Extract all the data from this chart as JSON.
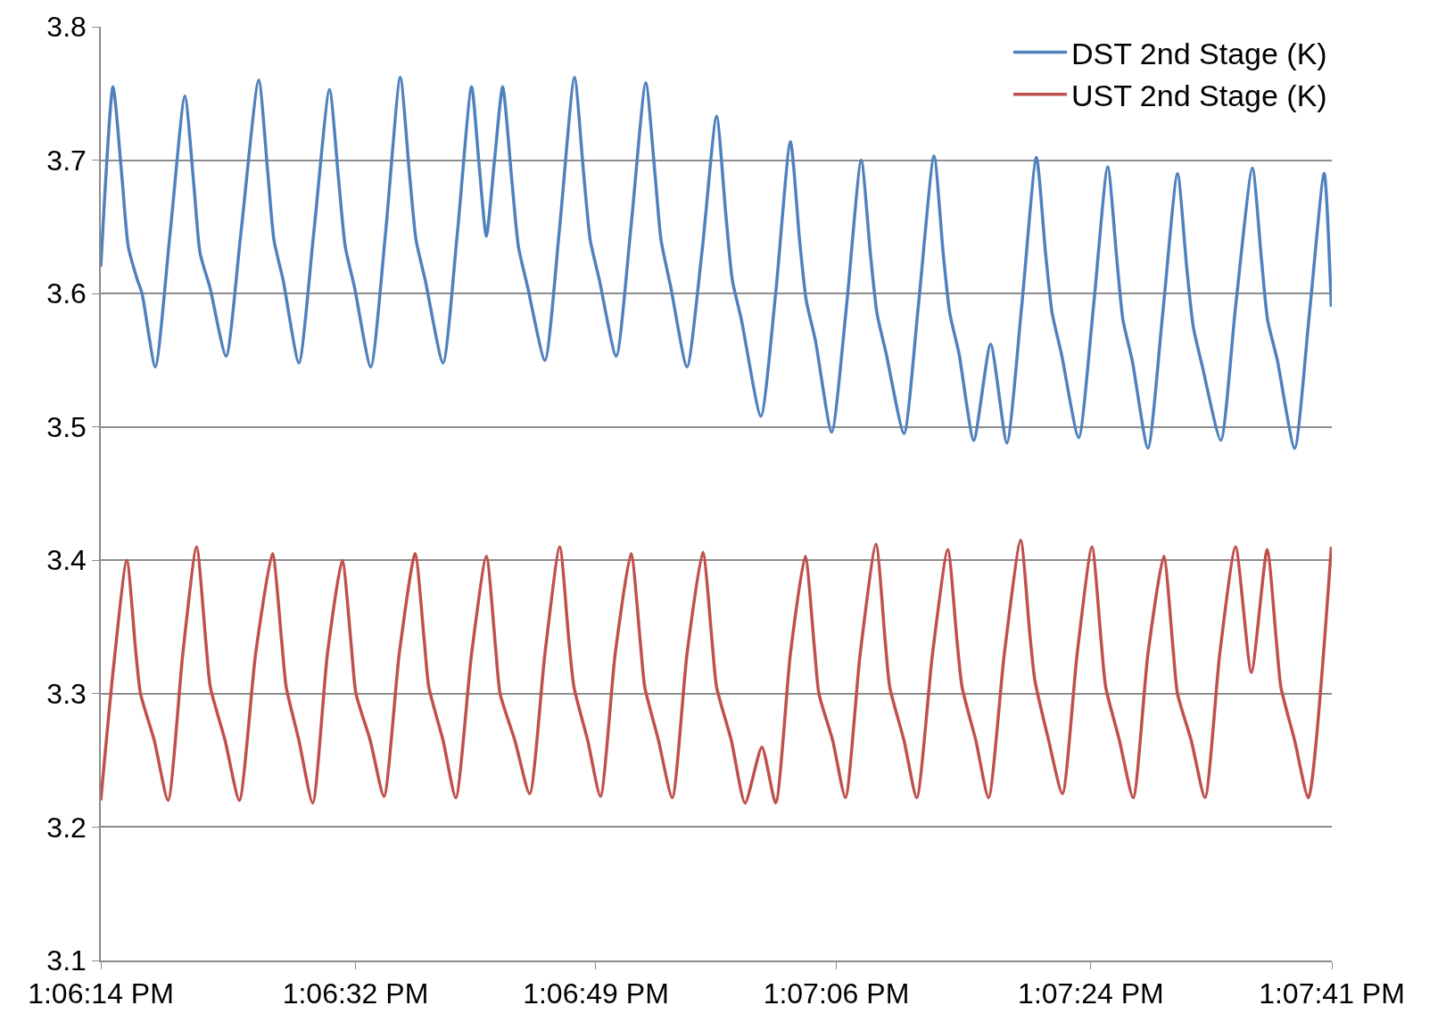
{
  "chart_data": {
    "type": "line",
    "xlim": [
      13.10389,
      13.12806
    ],
    "xticks": [
      {
        "value": 13.10389,
        "label": "1:06:14 PM"
      },
      {
        "value": 13.10889,
        "label": "1:06:32 PM"
      },
      {
        "value": 13.11361,
        "label": "1:06:49 PM"
      },
      {
        "value": 13.11833,
        "label": "1:07:06 PM"
      },
      {
        "value": 13.12333,
        "label": "1:07:24 PM"
      },
      {
        "value": 13.12806,
        "label": "1:07:41 PM"
      }
    ],
    "ylim": [
      3.1,
      3.8
    ],
    "yticks": [
      3.1,
      3.2,
      3.3,
      3.4,
      3.5,
      3.6,
      3.7,
      3.8
    ],
    "grid": "y",
    "legend": "top right",
    "marker": "none",
    "line_style": "solid",
    "series": [
      {
        "name": "DST 2nd Stage (K)",
        "color": "#4f81bd",
        "x": [
          13.10389,
          13.10413,
          13.10431,
          13.10443,
          13.10461,
          13.1047,
          13.10496,
          13.10525,
          13.10554,
          13.10572,
          13.10584,
          13.10603,
          13.10635,
          13.10664,
          13.10699,
          13.10717,
          13.10729,
          13.10747,
          13.10778,
          13.10807,
          13.10838,
          13.10856,
          13.10869,
          13.10887,
          13.10919,
          13.10948,
          13.10977,
          13.10995,
          13.11008,
          13.11026,
          13.11061,
          13.11089,
          13.11117,
          13.11131,
          13.11146,
          13.11162,
          13.11178,
          13.11196,
          13.11209,
          13.11227,
          13.11261,
          13.1129,
          13.11319,
          13.11337,
          13.1135,
          13.11368,
          13.11401,
          13.1143,
          13.11459,
          13.11477,
          13.11489,
          13.11508,
          13.1154,
          13.11569,
          13.11598,
          13.11616,
          13.11629,
          13.11647,
          13.11685,
          13.11714,
          13.11743,
          13.11761,
          13.11774,
          13.11792,
          13.11824,
          13.11853,
          13.11882,
          13.119,
          13.11913,
          13.11931,
          13.11966,
          13.11994,
          13.12025,
          13.12043,
          13.12056,
          13.12074,
          13.12103,
          13.12136,
          13.12168,
          13.12197,
          13.12226,
          13.12244,
          13.12257,
          13.12275,
          13.12309,
          13.12338,
          13.12366,
          13.12384,
          13.12396,
          13.12414,
          13.12445,
          13.12474,
          13.12503,
          13.12521,
          13.12534,
          13.12552,
          13.12588,
          13.12617,
          13.1265,
          13.12668,
          13.1268,
          13.12699,
          13.12733,
          13.12762,
          13.12791,
          13.12805
        ],
        "values": [
          3.62,
          3.755,
          3.685,
          3.635,
          3.61,
          3.6,
          3.545,
          3.645,
          3.748,
          3.68,
          3.63,
          3.605,
          3.553,
          3.645,
          3.76,
          3.69,
          3.64,
          3.61,
          3.548,
          3.645,
          3.753,
          3.685,
          3.635,
          3.605,
          3.545,
          3.645,
          3.762,
          3.69,
          3.64,
          3.61,
          3.548,
          3.645,
          3.755,
          3.7,
          3.643,
          3.7,
          3.755,
          3.685,
          3.635,
          3.605,
          3.55,
          3.65,
          3.762,
          3.69,
          3.64,
          3.61,
          3.553,
          3.65,
          3.758,
          3.69,
          3.64,
          3.605,
          3.545,
          3.63,
          3.733,
          3.66,
          3.61,
          3.58,
          3.508,
          3.6,
          3.714,
          3.64,
          3.595,
          3.565,
          3.496,
          3.59,
          3.7,
          3.63,
          3.585,
          3.555,
          3.495,
          3.59,
          3.703,
          3.63,
          3.585,
          3.555,
          3.49,
          3.562,
          3.488,
          3.59,
          3.702,
          3.63,
          3.585,
          3.555,
          3.492,
          3.59,
          3.695,
          3.625,
          3.58,
          3.55,
          3.484,
          3.585,
          3.69,
          3.62,
          3.575,
          3.545,
          3.49,
          3.59,
          3.694,
          3.625,
          3.58,
          3.55,
          3.484,
          3.585,
          3.69,
          3.59
        ]
      },
      {
        "name": "UST 2nd Stage (K)",
        "color": "#c0504d",
        "x": [
          13.10389,
          13.10414,
          13.1044,
          13.10458,
          13.10467,
          13.10494,
          13.10521,
          13.1055,
          13.10577,
          13.10595,
          13.10604,
          13.10633,
          13.10661,
          13.10693,
          13.10726,
          13.10744,
          13.10753,
          13.10778,
          13.10805,
          13.10834,
          13.10863,
          13.10881,
          13.1089,
          13.10918,
          13.10945,
          13.10975,
          13.11006,
          13.11024,
          13.11033,
          13.11061,
          13.11086,
          13.11117,
          13.11146,
          13.11164,
          13.11173,
          13.11202,
          13.11231,
          13.11261,
          13.1129,
          13.11308,
          13.11318,
          13.11345,
          13.1137,
          13.11399,
          13.1143,
          13.11448,
          13.11457,
          13.11484,
          13.11511,
          13.1154,
          13.11571,
          13.11589,
          13.11598,
          13.11627,
          13.11654,
          13.11687,
          13.11714,
          13.11743,
          13.11772,
          13.1179,
          13.11799,
          13.11826,
          13.11851,
          13.1188,
          13.11911,
          13.11929,
          13.11938,
          13.11966,
          13.11991,
          13.12022,
          13.12052,
          13.1207,
          13.1208,
          13.12107,
          13.12132,
          13.12163,
          13.12195,
          13.12213,
          13.12223,
          13.1225,
          13.12277,
          13.12306,
          13.12335,
          13.12353,
          13.12362,
          13.12389,
          13.12416,
          13.12445,
          13.12476,
          13.12494,
          13.12503,
          13.1253,
          13.12557,
          13.12586,
          13.12617,
          13.12648,
          13.12679,
          13.12697,
          13.12706,
          13.12733,
          13.1276,
          13.12805
        ],
        "values": [
          3.22,
          3.32,
          3.4,
          3.33,
          3.3,
          3.265,
          3.22,
          3.33,
          3.41,
          3.34,
          3.305,
          3.265,
          3.22,
          3.33,
          3.405,
          3.34,
          3.305,
          3.265,
          3.218,
          3.33,
          3.4,
          3.335,
          3.3,
          3.265,
          3.223,
          3.33,
          3.405,
          3.34,
          3.305,
          3.265,
          3.222,
          3.33,
          3.403,
          3.335,
          3.3,
          3.265,
          3.225,
          3.33,
          3.41,
          3.34,
          3.305,
          3.265,
          3.223,
          3.33,
          3.405,
          3.34,
          3.305,
          3.265,
          3.222,
          3.33,
          3.406,
          3.34,
          3.305,
          3.265,
          3.218,
          3.26,
          3.218,
          3.33,
          3.403,
          3.335,
          3.3,
          3.265,
          3.222,
          3.33,
          3.412,
          3.34,
          3.305,
          3.265,
          3.222,
          3.33,
          3.408,
          3.34,
          3.305,
          3.265,
          3.222,
          3.33,
          3.415,
          3.345,
          3.31,
          3.265,
          3.225,
          3.33,
          3.41,
          3.34,
          3.305,
          3.265,
          3.222,
          3.33,
          3.403,
          3.335,
          3.3,
          3.265,
          3.222,
          3.33,
          3.41,
          3.316,
          3.408,
          3.34,
          3.305,
          3.265,
          3.222,
          3.41
        ]
      }
    ]
  }
}
